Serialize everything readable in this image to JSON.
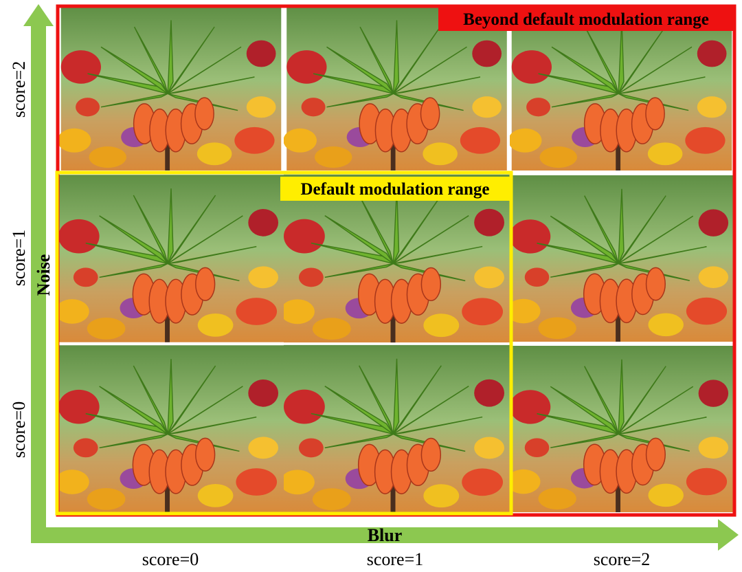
{
  "axes": {
    "x": {
      "label": "Blur",
      "ticks": [
        "score=0",
        "score=1",
        "score=2"
      ]
    },
    "y": {
      "label": "Noise",
      "ticks": [
        "score=2",
        "score=1",
        "score=0"
      ]
    }
  },
  "regions": {
    "beyond": "Beyond default modulation range",
    "default": "Default modulation range"
  }
}
